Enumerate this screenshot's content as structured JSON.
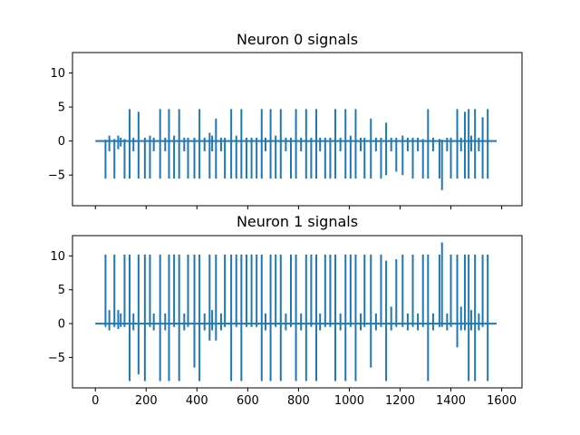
{
  "chart_data": [
    {
      "type": "line",
      "title": "Neuron 0 signals",
      "xlabel": "",
      "ylabel": "",
      "xlim": [
        -90,
        1680
      ],
      "ylim": [
        -9.5,
        13
      ],
      "xticks": [
        0,
        200,
        400,
        600,
        800,
        1000,
        1200,
        1400,
        1600
      ],
      "xtick_labels_visible": false,
      "yticks": [
        -5,
        0,
        5,
        10
      ],
      "ytick_labels": [
        "−5",
        "0",
        "5",
        "10"
      ],
      "grid": false,
      "series": [
        {
          "color": "#1f77b4",
          "baseline": [
            0,
            1580
          ],
          "spikes": [
            {
              "x": 40,
              "lo": -5.5,
              "hi": 0.2
            },
            {
              "x": 55,
              "lo": -1.5,
              "hi": 0.8
            },
            {
              "x": 75,
              "lo": -5.5,
              "hi": 0.3
            },
            {
              "x": 90,
              "lo": -1.2,
              "hi": 0.8
            },
            {
              "x": 100,
              "lo": -0.8,
              "hi": 0.5
            },
            {
              "x": 115,
              "lo": -5.5,
              "hi": 0.3
            },
            {
              "x": 135,
              "lo": -5.5,
              "hi": 4.7
            },
            {
              "x": 150,
              "lo": -1.5,
              "hi": 0.5
            },
            {
              "x": 170,
              "lo": -5.5,
              "hi": 4.3
            },
            {
              "x": 195,
              "lo": -5.5,
              "hi": 0.5
            },
            {
              "x": 215,
              "lo": -5.5,
              "hi": 0.8
            },
            {
              "x": 230,
              "lo": -1.5,
              "hi": 0.5
            },
            {
              "x": 255,
              "lo": -5.5,
              "hi": 4.7
            },
            {
              "x": 275,
              "lo": -1.5,
              "hi": 0.5
            },
            {
              "x": 290,
              "lo": -5.5,
              "hi": 4.7
            },
            {
              "x": 310,
              "lo": -5.5,
              "hi": 0.8
            },
            {
              "x": 330,
              "lo": -5.5,
              "hi": 4.7
            },
            {
              "x": 350,
              "lo": -1.5,
              "hi": 0.5
            },
            {
              "x": 365,
              "lo": -5.5,
              "hi": 0.5
            },
            {
              "x": 390,
              "lo": -5.5,
              "hi": 0.5
            },
            {
              "x": 410,
              "lo": -5.5,
              "hi": 4.7
            },
            {
              "x": 430,
              "lo": -1.5,
              "hi": 0.5
            },
            {
              "x": 450,
              "lo": -5.5,
              "hi": 1.2
            },
            {
              "x": 460,
              "lo": -1.5,
              "hi": 0.8
            },
            {
              "x": 475,
              "lo": -5.5,
              "hi": 3.3
            },
            {
              "x": 495,
              "lo": -1.5,
              "hi": 0.5
            },
            {
              "x": 510,
              "lo": -5.5,
              "hi": 0.5
            },
            {
              "x": 535,
              "lo": -5.5,
              "hi": 4.7
            },
            {
              "x": 555,
              "lo": -5.5,
              "hi": 0.8
            },
            {
              "x": 575,
              "lo": -5.5,
              "hi": 4.7
            },
            {
              "x": 595,
              "lo": -5.5,
              "hi": 0.5
            },
            {
              "x": 615,
              "lo": -5.5,
              "hi": 0.5
            },
            {
              "x": 635,
              "lo": -5.5,
              "hi": 0.5
            },
            {
              "x": 655,
              "lo": -5.5,
              "hi": 4.7
            },
            {
              "x": 670,
              "lo": -1.5,
              "hi": 0.5
            },
            {
              "x": 690,
              "lo": -5.5,
              "hi": 4.7
            },
            {
              "x": 710,
              "lo": -5.5,
              "hi": 0.8
            },
            {
              "x": 730,
              "lo": -5.5,
              "hi": 4.7
            },
            {
              "x": 750,
              "lo": -1.5,
              "hi": 0.5
            },
            {
              "x": 770,
              "lo": -5.5,
              "hi": 0.5
            },
            {
              "x": 790,
              "lo": -5.5,
              "hi": 4.7
            },
            {
              "x": 810,
              "lo": -1.5,
              "hi": 0.5
            },
            {
              "x": 830,
              "lo": -5.5,
              "hi": 4.7
            },
            {
              "x": 850,
              "lo": -5.5,
              "hi": 0.5
            },
            {
              "x": 870,
              "lo": -5.5,
              "hi": 4.7
            },
            {
              "x": 885,
              "lo": -1.5,
              "hi": 0.5
            },
            {
              "x": 905,
              "lo": -5.5,
              "hi": 0.5
            },
            {
              "x": 925,
              "lo": -5.5,
              "hi": 0.5
            },
            {
              "x": 945,
              "lo": -5.5,
              "hi": 4.7
            },
            {
              "x": 965,
              "lo": -1.5,
              "hi": 0.5
            },
            {
              "x": 985,
              "lo": -5.5,
              "hi": 4.7
            },
            {
              "x": 1005,
              "lo": -5.5,
              "hi": 0.8
            },
            {
              "x": 1025,
              "lo": -5.5,
              "hi": 4.7
            },
            {
              "x": 1045,
              "lo": -1.5,
              "hi": 0.5
            },
            {
              "x": 1060,
              "lo": -5.5,
              "hi": 0.5
            },
            {
              "x": 1085,
              "lo": -5.5,
              "hi": 3.3
            },
            {
              "x": 1105,
              "lo": -1.5,
              "hi": 0.5
            },
            {
              "x": 1125,
              "lo": -5.5,
              "hi": 0.5
            },
            {
              "x": 1145,
              "lo": -5.0,
              "hi": 2.7
            },
            {
              "x": 1165,
              "lo": -1.5,
              "hi": 0.5
            },
            {
              "x": 1185,
              "lo": -4.5,
              "hi": 0.5
            },
            {
              "x": 1210,
              "lo": -5.0,
              "hi": 0.8
            },
            {
              "x": 1230,
              "lo": -1.5,
              "hi": 0.5
            },
            {
              "x": 1250,
              "lo": -5.5,
              "hi": 0.5
            },
            {
              "x": 1270,
              "lo": -1.5,
              "hi": 0.5
            },
            {
              "x": 1290,
              "lo": -5.5,
              "hi": 0.3
            },
            {
              "x": 1310,
              "lo": -5.5,
              "hi": 4.7
            },
            {
              "x": 1330,
              "lo": -1.5,
              "hi": 0.5
            },
            {
              "x": 1355,
              "lo": -5.5,
              "hi": 0.3
            },
            {
              "x": 1365,
              "lo": -7.2,
              "hi": 0.2
            },
            {
              "x": 1385,
              "lo": -1.5,
              "hi": 0.5
            },
            {
              "x": 1400,
              "lo": -5.5,
              "hi": 0.5
            },
            {
              "x": 1425,
              "lo": -5.5,
              "hi": 4.7
            },
            {
              "x": 1440,
              "lo": -1.5,
              "hi": 0.5
            },
            {
              "x": 1455,
              "lo": -5.5,
              "hi": 4.3
            },
            {
              "x": 1470,
              "lo": -5.5,
              "hi": 4.7
            },
            {
              "x": 1480,
              "lo": -1.5,
              "hi": 0.8
            },
            {
              "x": 1495,
              "lo": -5.5,
              "hi": 4.7
            },
            {
              "x": 1510,
              "lo": -1.5,
              "hi": 0.5
            },
            {
              "x": 1525,
              "lo": -5.5,
              "hi": 3.5
            },
            {
              "x": 1545,
              "lo": -5.5,
              "hi": 4.7
            }
          ]
        }
      ]
    },
    {
      "type": "line",
      "title": "Neuron 1 signals",
      "xlabel": "",
      "ylabel": "",
      "xlim": [
        -90,
        1680
      ],
      "ylim": [
        -9.5,
        13
      ],
      "xticks": [
        0,
        200,
        400,
        600,
        800,
        1000,
        1200,
        1400,
        1600
      ],
      "xtick_labels": [
        "0",
        "200",
        "400",
        "600",
        "800",
        "1000",
        "1200",
        "1400",
        "1600"
      ],
      "yticks": [
        -5,
        0,
        5,
        10
      ],
      "ytick_labels": [
        "−5",
        "0",
        "5",
        "10"
      ],
      "grid": false,
      "series": [
        {
          "color": "#1f77b4",
          "baseline": [
            0,
            1580
          ],
          "spikes": [
            {
              "x": 40,
              "lo": -0.5,
              "hi": 10.2
            },
            {
              "x": 55,
              "lo": -1.0,
              "hi": 2.0
            },
            {
              "x": 75,
              "lo": -0.5,
              "hi": 10.2
            },
            {
              "x": 90,
              "lo": -0.8,
              "hi": 2.0
            },
            {
              "x": 100,
              "lo": -0.5,
              "hi": 1.5
            },
            {
              "x": 115,
              "lo": -0.5,
              "hi": 10.2
            },
            {
              "x": 135,
              "lo": -8.5,
              "hi": 10.2
            },
            {
              "x": 150,
              "lo": -1.0,
              "hi": 1.5
            },
            {
              "x": 170,
              "lo": -7.5,
              "hi": 10.2
            },
            {
              "x": 195,
              "lo": -8.5,
              "hi": 10.2
            },
            {
              "x": 215,
              "lo": -0.5,
              "hi": 10.2
            },
            {
              "x": 230,
              "lo": -1.0,
              "hi": 1.5
            },
            {
              "x": 255,
              "lo": -8.5,
              "hi": 10.2
            },
            {
              "x": 275,
              "lo": -1.0,
              "hi": 1.5
            },
            {
              "x": 290,
              "lo": -8.5,
              "hi": 10.2
            },
            {
              "x": 310,
              "lo": -0.5,
              "hi": 10.2
            },
            {
              "x": 330,
              "lo": -8.5,
              "hi": 10.2
            },
            {
              "x": 350,
              "lo": -1.0,
              "hi": 1.5
            },
            {
              "x": 365,
              "lo": -0.5,
              "hi": 10.2
            },
            {
              "x": 390,
              "lo": -6.5,
              "hi": 10.2
            },
            {
              "x": 410,
              "lo": -8.5,
              "hi": 10.2
            },
            {
              "x": 430,
              "lo": -1.0,
              "hi": 1.5
            },
            {
              "x": 450,
              "lo": -2.5,
              "hi": 10.2
            },
            {
              "x": 460,
              "lo": -1.0,
              "hi": 2.0
            },
            {
              "x": 475,
              "lo": -2.5,
              "hi": 10.2
            },
            {
              "x": 495,
              "lo": -1.0,
              "hi": 1.5
            },
            {
              "x": 510,
              "lo": -0.5,
              "hi": 10.2
            },
            {
              "x": 535,
              "lo": -8.5,
              "hi": 10.2
            },
            {
              "x": 555,
              "lo": -0.5,
              "hi": 10.2
            },
            {
              "x": 575,
              "lo": -8.5,
              "hi": 10.2
            },
            {
              "x": 595,
              "lo": -0.5,
              "hi": 10.2
            },
            {
              "x": 615,
              "lo": -0.5,
              "hi": 10.2
            },
            {
              "x": 635,
              "lo": -0.5,
              "hi": 10.2
            },
            {
              "x": 655,
              "lo": -8.5,
              "hi": 10.2
            },
            {
              "x": 670,
              "lo": -1.0,
              "hi": 1.5
            },
            {
              "x": 690,
              "lo": -8.5,
              "hi": 10.2
            },
            {
              "x": 710,
              "lo": -0.5,
              "hi": 10.2
            },
            {
              "x": 730,
              "lo": -8.5,
              "hi": 10.2
            },
            {
              "x": 750,
              "lo": -1.0,
              "hi": 1.5
            },
            {
              "x": 770,
              "lo": -0.5,
              "hi": 10.2
            },
            {
              "x": 790,
              "lo": -8.5,
              "hi": 10.2
            },
            {
              "x": 810,
              "lo": -1.0,
              "hi": 1.5
            },
            {
              "x": 830,
              "lo": -8.5,
              "hi": 10.2
            },
            {
              "x": 850,
              "lo": -0.5,
              "hi": 10.2
            },
            {
              "x": 870,
              "lo": -8.5,
              "hi": 10.2
            },
            {
              "x": 885,
              "lo": -1.0,
              "hi": 1.5
            },
            {
              "x": 905,
              "lo": -0.5,
              "hi": 10.2
            },
            {
              "x": 925,
              "lo": -0.5,
              "hi": 10.2
            },
            {
              "x": 945,
              "lo": -8.5,
              "hi": 10.2
            },
            {
              "x": 965,
              "lo": -1.0,
              "hi": 1.5
            },
            {
              "x": 985,
              "lo": -8.5,
              "hi": 10.2
            },
            {
              "x": 1005,
              "lo": -0.5,
              "hi": 10.2
            },
            {
              "x": 1025,
              "lo": -8.5,
              "hi": 10.2
            },
            {
              "x": 1045,
              "lo": -1.0,
              "hi": 1.5
            },
            {
              "x": 1060,
              "lo": -0.5,
              "hi": 10.2
            },
            {
              "x": 1085,
              "lo": -6.5,
              "hi": 10.2
            },
            {
              "x": 1105,
              "lo": -1.0,
              "hi": 1.5
            },
            {
              "x": 1125,
              "lo": -0.5,
              "hi": 10.2
            },
            {
              "x": 1145,
              "lo": -8.5,
              "hi": 9.3
            },
            {
              "x": 1165,
              "lo": -1.0,
              "hi": 2.5
            },
            {
              "x": 1185,
              "lo": -0.5,
              "hi": 9.5
            },
            {
              "x": 1210,
              "lo": -0.5,
              "hi": 10.2
            },
            {
              "x": 1230,
              "lo": -1.0,
              "hi": 1.5
            },
            {
              "x": 1250,
              "lo": -0.5,
              "hi": 10.2
            },
            {
              "x": 1270,
              "lo": -1.0,
              "hi": 1.5
            },
            {
              "x": 1290,
              "lo": -0.5,
              "hi": 10.2
            },
            {
              "x": 1310,
              "lo": -8.5,
              "hi": 10.2
            },
            {
              "x": 1330,
              "lo": -1.0,
              "hi": 1.5
            },
            {
              "x": 1355,
              "lo": -0.5,
              "hi": 10.2
            },
            {
              "x": 1365,
              "lo": -0.5,
              "hi": 12.0
            },
            {
              "x": 1385,
              "lo": -1.0,
              "hi": 1.5
            },
            {
              "x": 1400,
              "lo": -0.5,
              "hi": 10.2
            },
            {
              "x": 1425,
              "lo": -3.5,
              "hi": 10.2
            },
            {
              "x": 1440,
              "lo": -1.0,
              "hi": 2.5
            },
            {
              "x": 1455,
              "lo": -1.0,
              "hi": 10.2
            },
            {
              "x": 1470,
              "lo": -8.5,
              "hi": 10.2
            },
            {
              "x": 1480,
              "lo": -1.0,
              "hi": 2.0
            },
            {
              "x": 1495,
              "lo": -8.5,
              "hi": 10.2
            },
            {
              "x": 1510,
              "lo": -1.0,
              "hi": 1.5
            },
            {
              "x": 1525,
              "lo": -0.5,
              "hi": 10.2
            },
            {
              "x": 1545,
              "lo": -8.5,
              "hi": 10.2
            }
          ]
        }
      ]
    }
  ]
}
